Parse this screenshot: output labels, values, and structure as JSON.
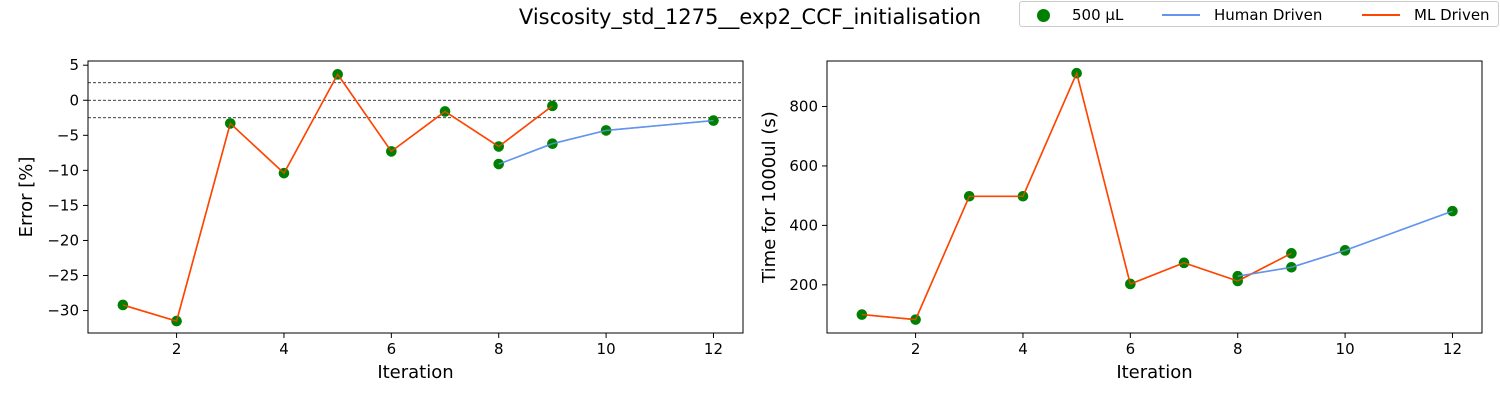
{
  "figure": {
    "suptitle": "Viscosity_std_1275__exp2_CCF_initialisation",
    "legend": {
      "items": [
        {
          "label": "500 µL",
          "kind": "marker",
          "color": "#008000"
        },
        {
          "label": "Human Driven",
          "kind": "line",
          "color": "#6495ED"
        },
        {
          "label": "ML Driven",
          "kind": "line",
          "color": "#FF4500"
        }
      ]
    }
  },
  "chart_data": [
    {
      "type": "line",
      "xlabel": "Iteration",
      "ylabel": "Error [%]",
      "xlim": [
        0.35,
        12.55
      ],
      "ylim": [
        -33.2,
        5.6
      ],
      "xticks": [
        2,
        4,
        6,
        8,
        10,
        12
      ],
      "yticks": [
        5,
        0,
        -5,
        -10,
        -15,
        -20,
        -25,
        -30
      ],
      "ytick_labels": [
        "5",
        "0",
        "−5",
        "−10",
        "−15",
        "−20",
        "−25",
        "−30"
      ],
      "reference_lines": [
        2.5,
        0,
        -2.5
      ],
      "series": [
        {
          "name": "ML Driven",
          "color": "#FF4500",
          "x": [
            1,
            2,
            3,
            4,
            5,
            6,
            7,
            8,
            9
          ],
          "y": [
            -29.2,
            -31.5,
            -3.3,
            -10.4,
            3.7,
            -7.3,
            -1.6,
            -6.6,
            -0.8
          ]
        },
        {
          "name": "Human Driven",
          "color": "#6495ED",
          "x": [
            8,
            9,
            10,
            12
          ],
          "y": [
            -9.1,
            -6.2,
            -4.3,
            -2.9
          ]
        },
        {
          "name": "500 µL",
          "kind": "marker",
          "color": "#008000",
          "x": [
            1,
            2,
            3,
            4,
            5,
            6,
            7,
            8,
            9,
            8,
            9,
            10,
            12
          ],
          "y": [
            -29.2,
            -31.5,
            -3.3,
            -10.4,
            3.7,
            -7.3,
            -1.6,
            -6.6,
            -0.8,
            -9.1,
            -6.2,
            -4.3,
            -2.9
          ]
        }
      ]
    },
    {
      "type": "line",
      "xlabel": "Iteration",
      "ylabel": "Time for 1000ul (s)",
      "xlim": [
        0.35,
        12.55
      ],
      "ylim": [
        38,
        953
      ],
      "xticks": [
        2,
        4,
        6,
        8,
        10,
        12
      ],
      "yticks": [
        200,
        400,
        600,
        800
      ],
      "ytick_labels": [
        "200",
        "400",
        "600",
        "800"
      ],
      "reference_lines": [],
      "series": [
        {
          "name": "ML Driven",
          "color": "#FF4500",
          "x": [
            1,
            2,
            3,
            4,
            5,
            6,
            7,
            8,
            9
          ],
          "y": [
            100,
            83,
            498,
            498,
            912,
            203,
            274,
            213,
            306
          ]
        },
        {
          "name": "Human Driven",
          "color": "#6495ED",
          "x": [
            8,
            9,
            10,
            12
          ],
          "y": [
            229,
            259,
            316,
            448
          ]
        },
        {
          "name": "500 µL",
          "kind": "marker",
          "color": "#008000",
          "x": [
            1,
            2,
            3,
            4,
            5,
            6,
            7,
            8,
            9,
            8,
            9,
            10,
            12
          ],
          "y": [
            100,
            83,
            498,
            498,
            912,
            203,
            274,
            213,
            306,
            229,
            259,
            316,
            448
          ]
        }
      ]
    }
  ]
}
